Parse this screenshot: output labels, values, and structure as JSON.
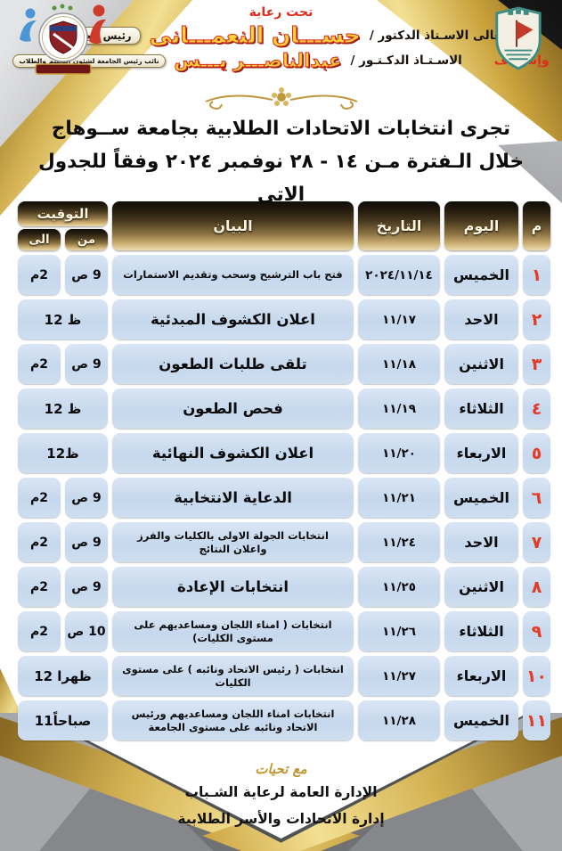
{
  "patronage": {
    "under_patronage": "تحت رعاية",
    "patron_prefix": "معالى الاسـتاذ الدكتور /",
    "patron_name": "حســـان النعمـــانى",
    "patron_title_badge": "رئيس الجامعة",
    "supervision_label": "وإشـراف",
    "supervisor_prefix": "الاسـتـاذ الدكـتـور /",
    "supervisor_name": "عبدالناصـــر يـــس",
    "supervisor_title_badge": "نائب رئيس الجامعة لشئون التعليم والطلاب"
  },
  "title": {
    "line1": "تجرى انتخابات الاتحادات الطلابية  بجامعة ســوهاج",
    "line2": "خلال الـفترة مـن ١٤ - ٢٨ نوفمبر ٢٠٢٤ وفقاً للجدول الاتى"
  },
  "table": {
    "headers": {
      "no": "م",
      "day": "اليوم",
      "date": "التاريخ",
      "statement": "البيان",
      "timing": "التوقيت",
      "from": "من",
      "to": "الى"
    },
    "rows": [
      {
        "no": "١",
        "day": "الخميس",
        "date": "٢٠٢٤/١١/١٤",
        "statement": "فتح باب الترشيح وسحب وتقديم الاستمارات",
        "from": "9 ص",
        "to": "2م"
      },
      {
        "no": "٢",
        "day": "الاحد",
        "date": "١١/١٧",
        "statement": "اعلان الكشوف المبدئية",
        "time": "12 ظ"
      },
      {
        "no": "٣",
        "day": "الاثنين",
        "date": "١١/١٨",
        "statement": "تلقى طلبات الطعون",
        "from": "9 ص",
        "to": "2م"
      },
      {
        "no": "٤",
        "day": "الثلاثاء",
        "date": "١١/١٩",
        "statement": "فحص الطعون",
        "time": "12 ظ"
      },
      {
        "no": "٥",
        "day": "الاربعاء",
        "date": "١١/٢٠",
        "statement": "اعلان الكشوف النهائية",
        "time": "12ظ"
      },
      {
        "no": "٦",
        "day": "الخميس",
        "date": "١١/٢١",
        "statement": "الدعاية الانتخابية",
        "from": "9 ص",
        "to": "2م"
      },
      {
        "no": "٧",
        "day": "الاحد",
        "date": "١١/٢٤",
        "statement": "انتخابات الجولة الاولى بالكليات والفرز واعلان النتائج",
        "from": "9 ص",
        "to": "2م"
      },
      {
        "no": "٨",
        "day": "الاثنين",
        "date": "١١/٢٥",
        "statement": "انتخابات الإعادة",
        "from": "9 ص",
        "to": "2م"
      },
      {
        "no": "٩",
        "day": "الثلاثاء",
        "date": "١١/٢٦",
        "statement": "انتخابات ( امناء اللجان ومساعديهم على مستوى الكليات)",
        "from": "10 ص",
        "to": "2م"
      },
      {
        "no": "١٠",
        "day": "الاربعاء",
        "date": "١١/٢٧",
        "statement": "انتخابات ( رئيس الاتحاد ونائبه ) على مستوى الكليات",
        "time": "12 ظهرا"
      },
      {
        "no": "١١",
        "day": "الخميس",
        "date": "١١/٢٨",
        "statement": "انتخابات امناء اللجان ومساعديهم ورئيس الاتحاد ونائبه على مستوى الجامعة",
        "time": "11صباحاً"
      }
    ]
  },
  "footer": {
    "regards": "مع تحيات",
    "dept_line1": "الإدارة العامة لرعاية الشـباب",
    "dept_line2": "إدارة الاتحادات والأسر الطلابية"
  },
  "logos": {
    "left": "youth-welfare-logo",
    "right": "sohag-university-logo"
  },
  "colors": {
    "red_accent": "#e43a28",
    "cell_blue": "#c9dbef",
    "header_gold_dark": "#181410",
    "header_gold_light": "#ecdcae",
    "ribbon_gold": "#d4b253",
    "name_yellow": "#ffd23b",
    "footer_gray": "#a6a7a9"
  }
}
